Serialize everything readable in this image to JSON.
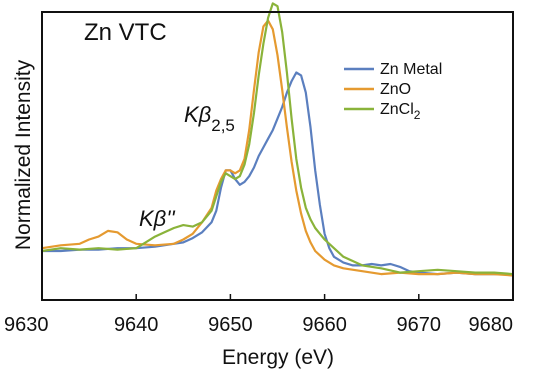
{
  "chart_data": {
    "type": "line",
    "title": "Zn VTC",
    "xlabel": "Energy (eV)",
    "ylabel": "Normalized Intensity",
    "xlim": [
      9630,
      9680
    ],
    "ylim": [
      -0.03,
      0.97
    ],
    "x_ticks": [
      9630,
      9640,
      9650,
      9660,
      9670,
      9680
    ],
    "x_tick_labels": [
      "9630",
      "9640",
      "9650",
      "9660",
      "9670",
      "9680"
    ],
    "y_ticks_shown": false,
    "grid": false,
    "legend_position": "upper-right",
    "annotations": [
      {
        "label_main": "Kβ",
        "label_sub": "2,5",
        "x": 9644.5,
        "y": 0.585
      },
      {
        "label_main": "Kβ''",
        "x": 9639.3,
        "y": 0.255
      }
    ],
    "series": [
      {
        "name": "Zn Metal",
        "legend_label": "Zn Metal",
        "color": "#5b7fbf",
        "x": [
          9630,
          9632,
          9634,
          9636,
          9638,
          9640,
          9642,
          9644,
          9645,
          9646,
          9647,
          9648,
          9648.5,
          9649,
          9649.5,
          9650,
          9650.5,
          9651,
          9651.5,
          9652,
          9652.5,
          9653,
          9653.5,
          9654,
          9654.5,
          9655,
          9655.5,
          9656,
          9656.5,
          9657,
          9657.5,
          9658,
          9658.5,
          9659,
          9659.5,
          9660,
          9660.5,
          9661,
          9662,
          9663,
          9664,
          9665,
          9666,
          9667,
          9668,
          9669,
          9670,
          9672,
          9674,
          9676,
          9678,
          9680
        ],
        "y": [
          0.14,
          0.14,
          0.145,
          0.145,
          0.15,
          0.15,
          0.155,
          0.165,
          0.17,
          0.185,
          0.205,
          0.24,
          0.28,
          0.36,
          0.42,
          0.42,
          0.39,
          0.37,
          0.38,
          0.4,
          0.43,
          0.47,
          0.5,
          0.53,
          0.56,
          0.6,
          0.64,
          0.69,
          0.73,
          0.76,
          0.75,
          0.69,
          0.57,
          0.42,
          0.3,
          0.2,
          0.15,
          0.12,
          0.1,
          0.09,
          0.09,
          0.095,
          0.09,
          0.095,
          0.085,
          0.07,
          0.065,
          0.06,
          0.065,
          0.06,
          0.06,
          0.06
        ]
      },
      {
        "name": "ZnO",
        "legend_label": "ZnO",
        "color": "#e59a30",
        "x": [
          9630,
          9632,
          9634,
          9635,
          9636,
          9637,
          9638,
          9639,
          9640,
          9642,
          9644,
          9645,
          9646,
          9647,
          9648,
          9648.5,
          9649,
          9649.5,
          9650,
          9650.5,
          9651,
          9651.5,
          9652,
          9652.5,
          9653,
          9653.5,
          9654,
          9654.5,
          9655,
          9655.5,
          9656,
          9656.5,
          9657,
          9657.5,
          9658,
          9658.5,
          9659,
          9660,
          9661,
          9662,
          9664,
          9666,
          9668,
          9670,
          9672,
          9674,
          9676,
          9678,
          9680
        ],
        "y": [
          0.15,
          0.16,
          0.165,
          0.18,
          0.19,
          0.21,
          0.205,
          0.18,
          0.165,
          0.16,
          0.165,
          0.18,
          0.2,
          0.24,
          0.29,
          0.35,
          0.39,
          0.42,
          0.42,
          0.41,
          0.42,
          0.46,
          0.56,
          0.7,
          0.83,
          0.92,
          0.94,
          0.91,
          0.82,
          0.7,
          0.57,
          0.45,
          0.35,
          0.27,
          0.21,
          0.17,
          0.14,
          0.11,
          0.09,
          0.08,
          0.07,
          0.06,
          0.065,
          0.06,
          0.06,
          0.065,
          0.06,
          0.06,
          0.055
        ]
      },
      {
        "name": "ZnCl2",
        "legend_label": "ZnCl",
        "legend_sub": "2",
        "color": "#8ab33a",
        "x": [
          9630,
          9632,
          9634,
          9636,
          9638,
          9640,
          9641,
          9642,
          9643,
          9644,
          9645,
          9646,
          9647,
          9648,
          9648.5,
          9649,
          9649.5,
          9650,
          9650.5,
          9651,
          9651.5,
          9652,
          9652.5,
          9653,
          9653.5,
          9654,
          9654.5,
          9655,
          9655.5,
          9656,
          9656.5,
          9657,
          9657.5,
          9658,
          9658.5,
          9659,
          9659.5,
          9660,
          9661,
          9662,
          9664,
          9666,
          9668,
          9670,
          9672,
          9674,
          9676,
          9678,
          9680
        ],
        "y": [
          0.14,
          0.15,
          0.145,
          0.15,
          0.145,
          0.15,
          0.17,
          0.19,
          0.205,
          0.22,
          0.23,
          0.225,
          0.24,
          0.28,
          0.33,
          0.38,
          0.41,
          0.4,
          0.39,
          0.4,
          0.44,
          0.51,
          0.62,
          0.75,
          0.86,
          0.95,
          1.0,
          0.99,
          0.9,
          0.76,
          0.6,
          0.46,
          0.36,
          0.29,
          0.25,
          0.22,
          0.2,
          0.18,
          0.15,
          0.12,
          0.09,
          0.08,
          0.065,
          0.07,
          0.075,
          0.07,
          0.065,
          0.065,
          0.06
        ]
      }
    ]
  }
}
